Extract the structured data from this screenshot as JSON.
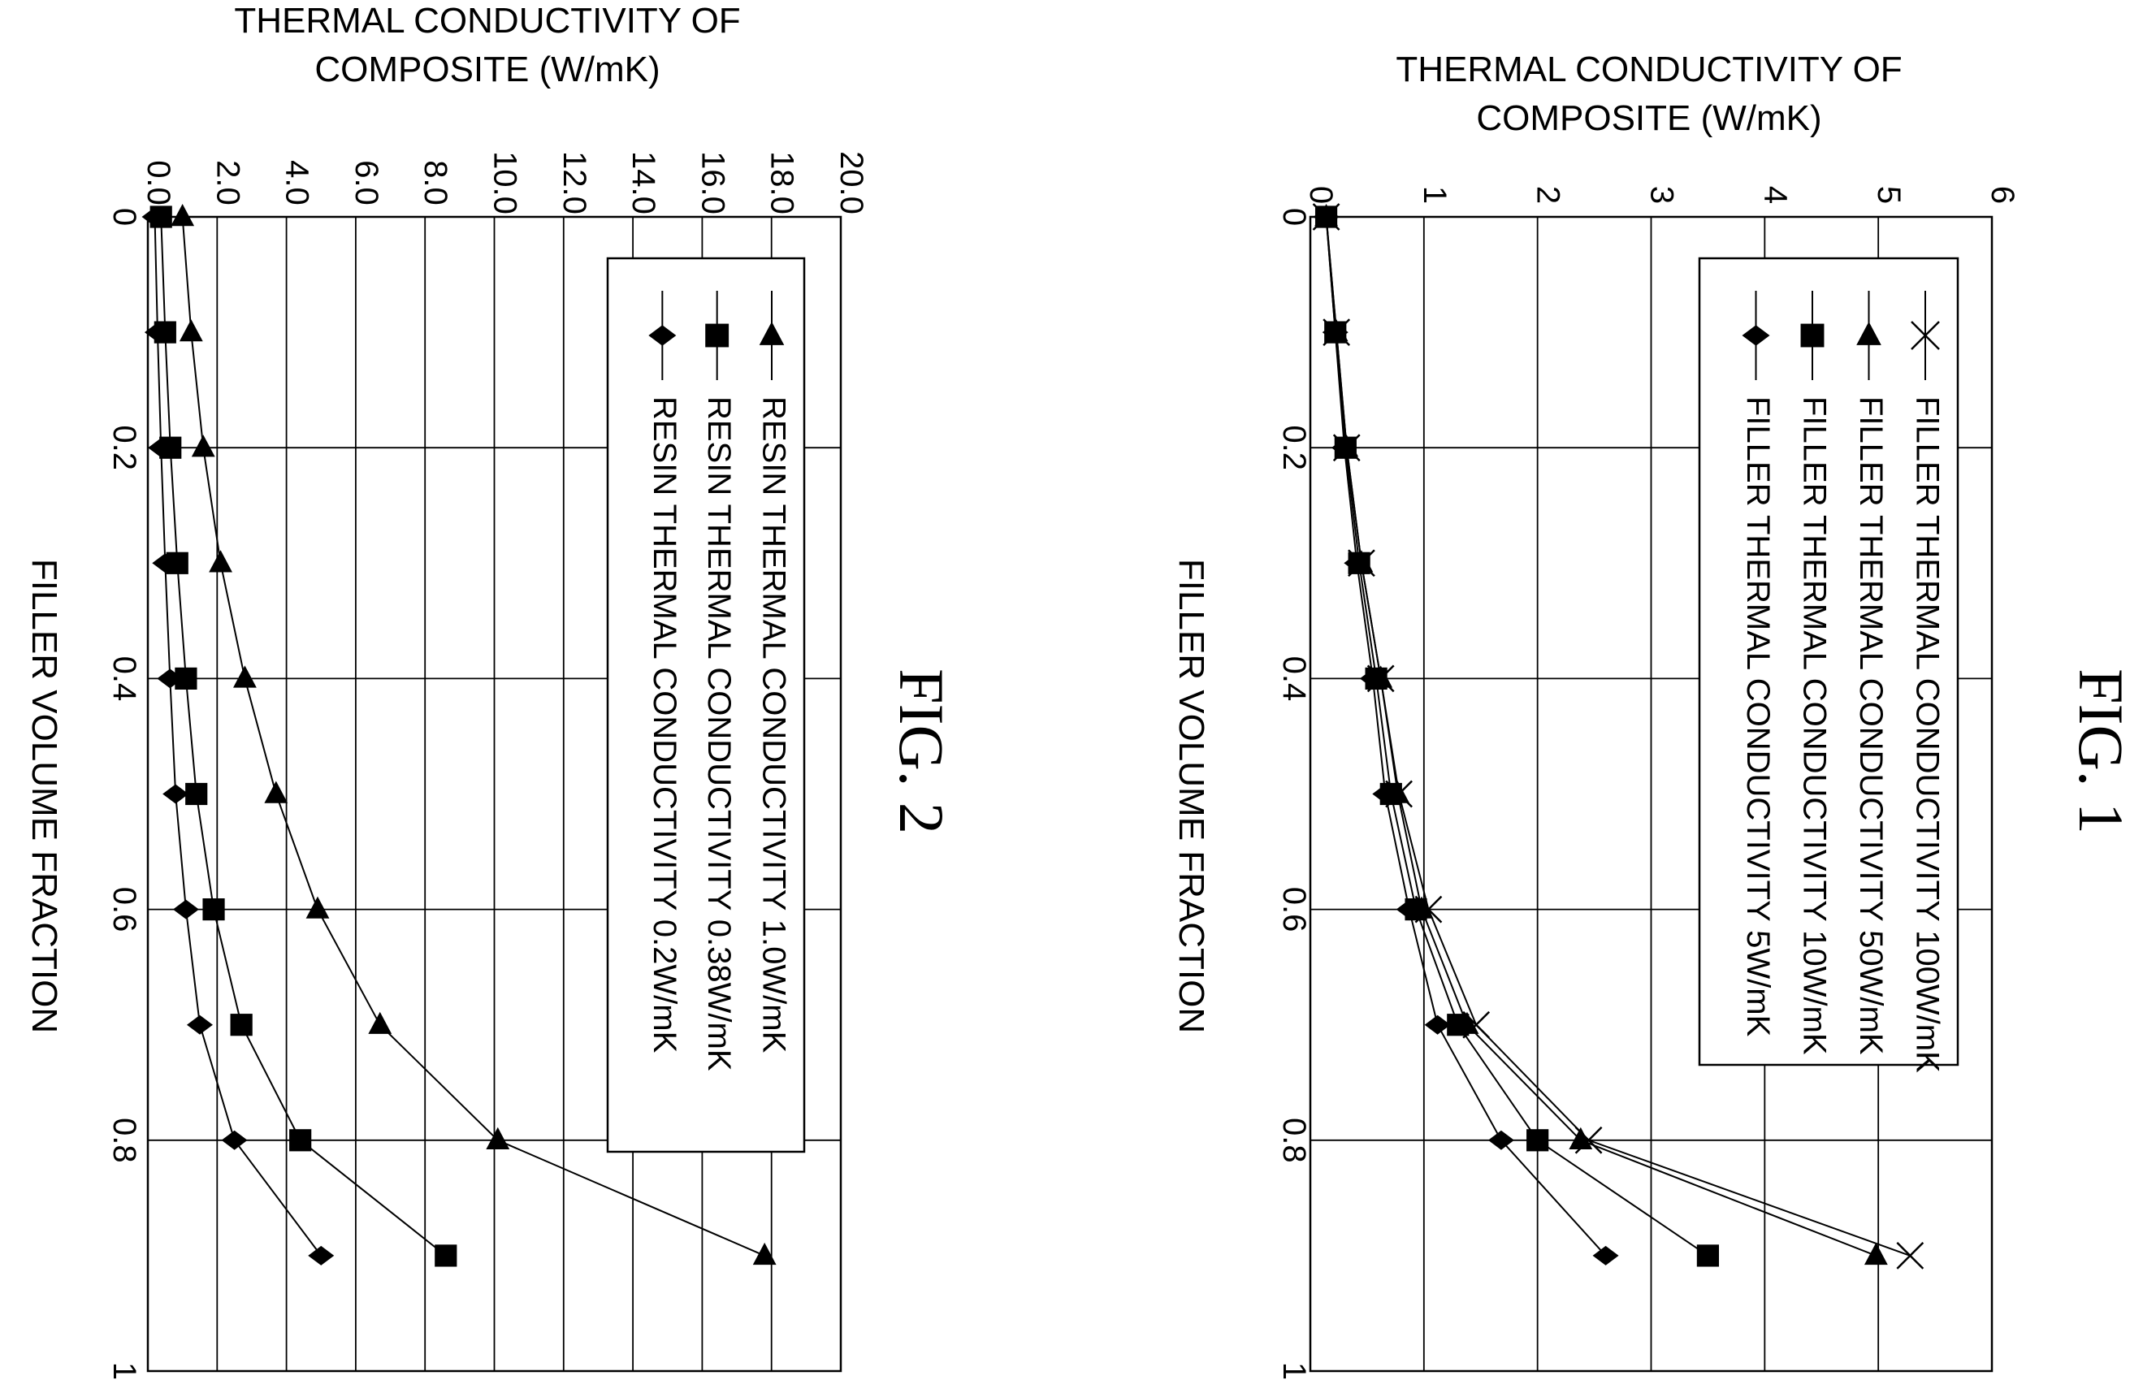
{
  "chart_data": [
    {
      "type": "line",
      "figure_label": "FIG. 1",
      "xlabel": "FILLER VOLUME FRACTION",
      "ylabel_lines": [
        "THERMAL CONDUCTIVITY OF",
        "COMPOSITE (W/mK)"
      ],
      "xlim": [
        0,
        1
      ],
      "ylim": [
        0,
        6
      ],
      "x_ticks": [
        0,
        0.2,
        0.4,
        0.6,
        0.8,
        1
      ],
      "x_tick_labels": [
        "0",
        "0.2",
        "0.4",
        "0.6",
        "0.8",
        "1"
      ],
      "y_ticks": [
        0,
        1,
        2,
        3,
        4,
        5,
        6
      ],
      "y_tick_labels": [
        "0",
        "1",
        "2",
        "3",
        "4",
        "5",
        "6"
      ],
      "grid": true,
      "legend": "inside-upper-left",
      "x": [
        0,
        0.1,
        0.2,
        0.3,
        0.4,
        0.5,
        0.6,
        0.7,
        0.8,
        0.9
      ],
      "series": [
        {
          "name": "FILLER THERMAL CONDUCTIVITY 100W/mK",
          "marker": "x",
          "values": [
            0.14,
            0.23,
            0.32,
            0.45,
            0.62,
            0.78,
            1.04,
            1.46,
            2.45,
            5.28
          ]
        },
        {
          "name": "FILLER THERMAL CONDUCTIVITY 50W/mK",
          "marker": "triangle",
          "values": [
            0.14,
            0.23,
            0.32,
            0.45,
            0.62,
            0.77,
            0.98,
            1.38,
            2.38,
            4.98
          ]
        },
        {
          "name": "FILLER THERMAL CONDUCTIVITY 10W/mK",
          "marker": "square",
          "values": [
            0.14,
            0.22,
            0.31,
            0.43,
            0.58,
            0.71,
            0.93,
            1.3,
            2.0,
            3.5
          ]
        },
        {
          "name": "FILLER THERMAL CONDUCTIVITY 5W/mK",
          "marker": "diamond",
          "values": [
            0.14,
            0.22,
            0.3,
            0.41,
            0.55,
            0.66,
            0.87,
            1.12,
            1.68,
            2.6
          ]
        }
      ]
    },
    {
      "type": "line",
      "figure_label": "FIG. 2",
      "xlabel": "FILLER VOLUME FRACTION",
      "ylabel_lines": [
        "THERMAL CONDUCTIVITY OF",
        "COMPOSITE (W/mK)"
      ],
      "xlim": [
        0,
        1
      ],
      "ylim": [
        0,
        20
      ],
      "x_ticks": [
        0,
        0.2,
        0.4,
        0.6,
        0.8,
        1
      ],
      "x_tick_labels": [
        "0",
        "0.2",
        "0.4",
        "0.6",
        "0.8",
        "1"
      ],
      "y_ticks": [
        0,
        2,
        4,
        6,
        8,
        10,
        12,
        14,
        16,
        18,
        20
      ],
      "y_tick_labels": [
        "0.0",
        "2.0",
        "4.0",
        "6.0",
        "8.0",
        "10.0",
        "12.0",
        "14.0",
        "16.0",
        "18.0",
        "20.0"
      ],
      "grid": true,
      "legend": "inside-upper-left",
      "x": [
        0,
        0.1,
        0.2,
        0.3,
        0.4,
        0.5,
        0.6,
        0.7,
        0.8,
        0.9
      ],
      "series": [
        {
          "name": "RESIN THERMAL CONDUCTIVITY 1.0W/mK",
          "marker": "triangle",
          "values": [
            1.0,
            1.25,
            1.6,
            2.1,
            2.8,
            3.7,
            4.9,
            6.7,
            10.1,
            17.8
          ]
        },
        {
          "name": "RESIN THERMAL CONDUCTIVITY 0.38W/mK",
          "marker": "square",
          "values": [
            0.38,
            0.5,
            0.65,
            0.85,
            1.1,
            1.4,
            1.9,
            2.7,
            4.4,
            8.6
          ]
        },
        {
          "name": "RESIN THERMAL CONDUCTIVITY 0.2W/mK",
          "marker": "diamond",
          "values": [
            0.2,
            0.28,
            0.38,
            0.5,
            0.64,
            0.8,
            1.1,
            1.5,
            2.5,
            5.0
          ]
        }
      ]
    }
  ]
}
